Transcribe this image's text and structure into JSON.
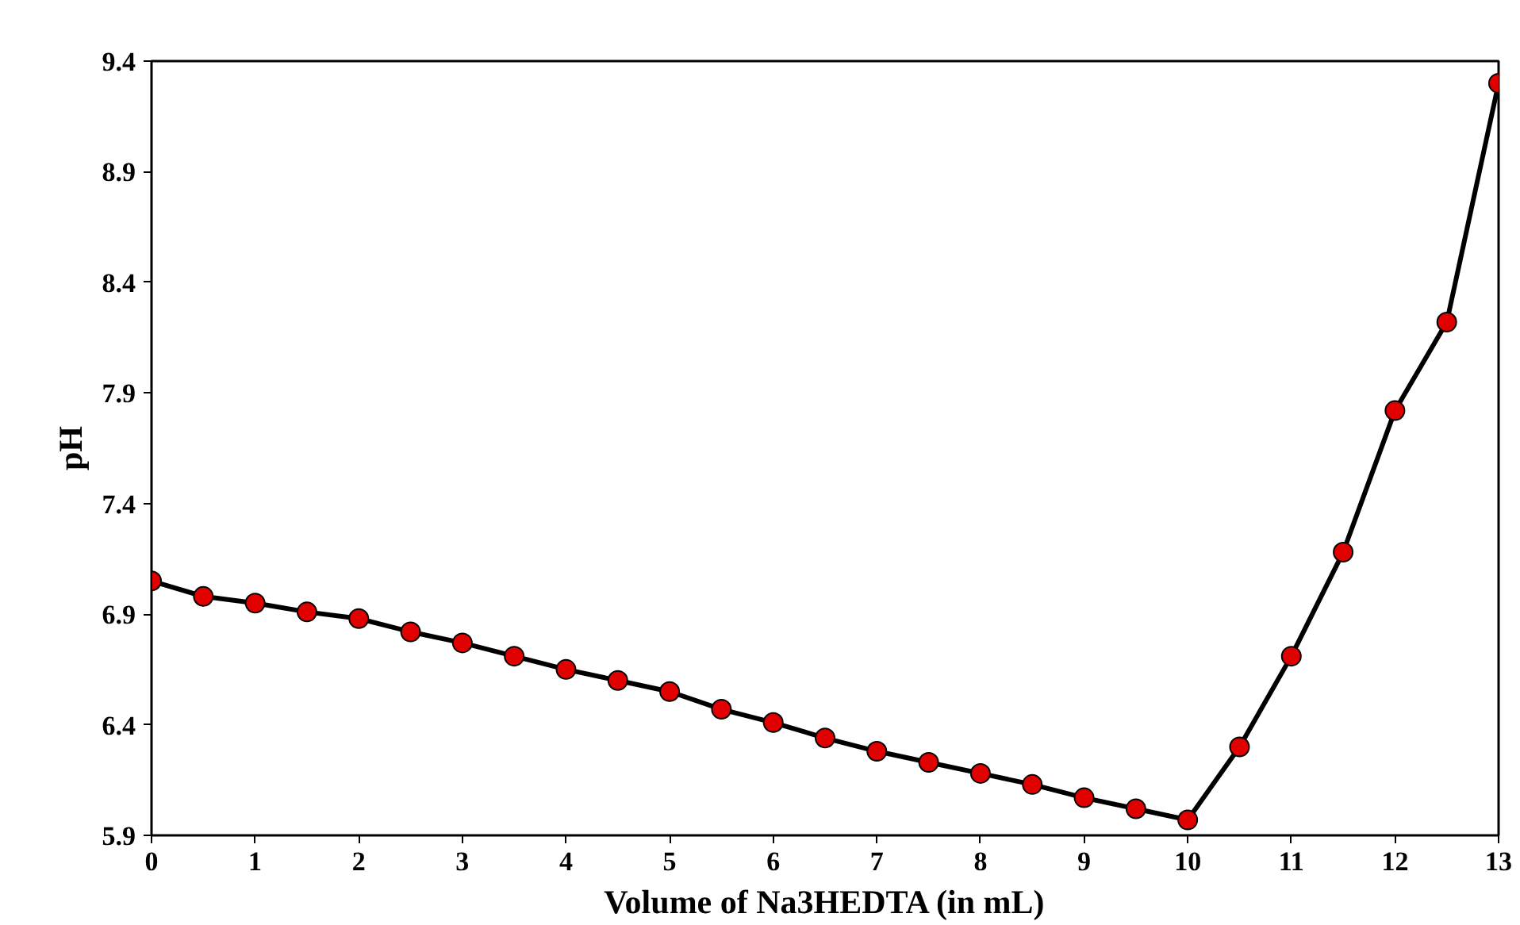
{
  "chart_data": {
    "type": "line",
    "xlabel": "Volume of Na3HEDTA (in mL)",
    "ylabel": "pH",
    "x": [
      0,
      0.5,
      1,
      1.5,
      2,
      2.5,
      3,
      3.5,
      4,
      4.5,
      5,
      5.5,
      6,
      6.5,
      7,
      7.5,
      8,
      8.5,
      9,
      9.5,
      10,
      10.5,
      11,
      11.5,
      12,
      12.5,
      13
    ],
    "series": [
      {
        "color": "#e00000",
        "values": [
          7.05,
          6.98,
          6.95,
          6.91,
          6.88,
          6.82,
          6.77,
          6.71,
          6.65,
          6.6,
          6.55,
          6.47,
          6.41,
          6.34,
          6.28,
          6.23,
          6.18,
          6.13,
          6.07,
          6.02,
          5.97,
          6.3,
          6.71,
          7.18,
          7.82,
          8.22,
          9.3
        ]
      }
    ],
    "xlim": [
      0,
      13
    ],
    "xticks": [
      0,
      1,
      2,
      3,
      4,
      5,
      6,
      7,
      8,
      9,
      10,
      11,
      12,
      13
    ],
    "ylim": [
      5.9,
      9.4
    ],
    "yticks": [
      5.9,
      6.4,
      6.9,
      7.4,
      7.9,
      8.4,
      8.9,
      9.4
    ],
    "marker": "circle",
    "line_style": "solid",
    "grid": false
  }
}
